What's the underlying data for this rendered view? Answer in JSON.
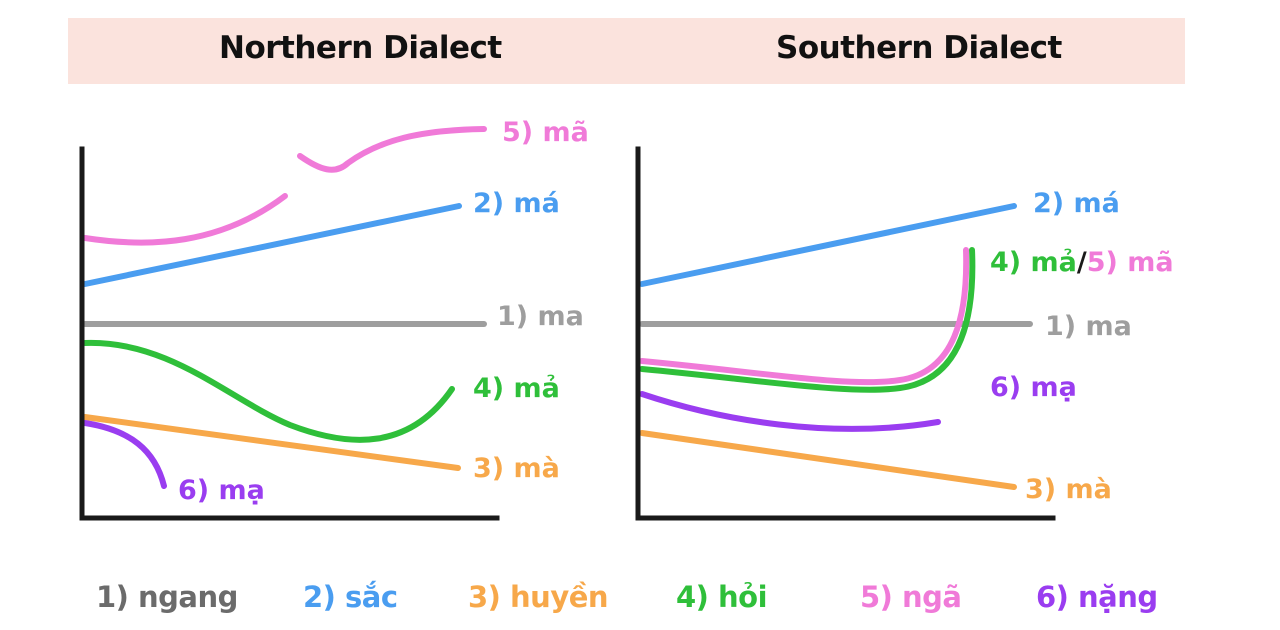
{
  "header": {
    "left_title": "Northern Dialect",
    "right_title": "Southern Dialect"
  },
  "colors": {
    "ngang": "#9e9e9e",
    "sac": "#4a9df0",
    "huyen": "#f7a84a",
    "hoi": "#2fbf3a",
    "nga": "#f07ad8",
    "nang": "#9a3df0",
    "axis": "#1a1a1a"
  },
  "northern": {
    "labels": {
      "nga": "5) mã",
      "sac": "2) má",
      "ngang": "1) ma",
      "hoi": "4) mả",
      "huyen": "3) mà",
      "nang": "6) mạ"
    }
  },
  "southern": {
    "labels": {
      "sac": "2) má",
      "hoi_part": "4) mả",
      "slash": "/",
      "nga_part": "5) mã",
      "ngang": "1) ma",
      "nang": "6) mạ",
      "huyen": "3) mà"
    }
  },
  "legend": [
    {
      "key": "ngang",
      "label": "1) ngang"
    },
    {
      "key": "sac",
      "label": "2) sắc"
    },
    {
      "key": "huyen",
      "label": "3) huyền"
    },
    {
      "key": "hoi",
      "label": "4) hỏi"
    },
    {
      "key": "nga",
      "label": "5) ngã"
    },
    {
      "key": "nang",
      "label": "6) nặng"
    }
  ]
}
